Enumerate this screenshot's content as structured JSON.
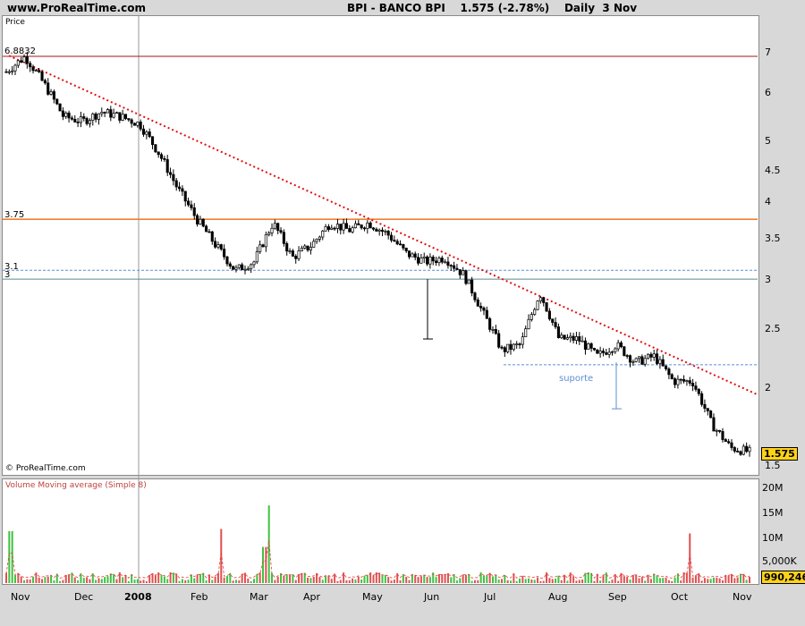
{
  "header": {
    "site": "www.ProRealTime.com",
    "title": "BPI - BANCO BPI    1.575 (-2.78%)    Daily  3 Nov"
  },
  "price_panel": {
    "label": "Price",
    "watermark": "© ProRealTime.com",
    "last_price": "1.575"
  },
  "volume_panel": {
    "label": "Volume Moving average (Simple 8)",
    "last_volume": "990,246"
  },
  "chart_data": [
    {
      "type": "candlestick",
      "title": "BPI - BANCO BPI",
      "yscale": "log",
      "ylim": [
        1.45,
        7.6
      ],
      "y_ticks": [
        "7",
        "6",
        "5",
        "4.5",
        "4",
        "3.5",
        "3",
        "2.5",
        "2",
        "1.5"
      ],
      "x_ticks": [
        "Nov",
        "Dec",
        "2008",
        "Feb",
        "Mar",
        "Apr",
        "May",
        "Jun",
        "Jul",
        "Aug",
        "Sep",
        "Oct",
        "Nov"
      ],
      "vertical_marker": "2008",
      "grid": false,
      "horizontal_lines": [
        {
          "label": "6.8832",
          "value": 6.8832,
          "color": "#a01818",
          "style": "solid"
        },
        {
          "label": "3.75",
          "value": 3.75,
          "color": "#f08030",
          "style": "solid"
        },
        {
          "label": "3.1",
          "value": 3.1,
          "color": "#5b8fd6",
          "style": "dashed"
        },
        {
          "label": "3",
          "value": 3.0,
          "color": "#5a8a8a",
          "style": "solid"
        }
      ],
      "trendline": {
        "from": [
          "Nov",
          6.9
        ],
        "to": [
          "Nov",
          1.95
        ],
        "color": "#e01010",
        "style": "dotted"
      },
      "support": {
        "label": "suporte",
        "value": 2.18,
        "color": "#5b8fd6",
        "style": "dashed"
      },
      "close_path": [
        [
          "Nov",
          6.5
        ],
        [
          "Nov",
          6.88
        ],
        [
          "Nov",
          6.2
        ],
        [
          "Dec",
          5.5
        ],
        [
          "Dec",
          5.4
        ],
        [
          "Dec",
          5.6
        ],
        [
          "2008",
          5.5
        ],
        [
          "2008",
          5.35
        ],
        [
          "2008",
          4.8
        ],
        [
          "Feb",
          4.2
        ],
        [
          "Feb",
          3.75
        ],
        [
          "Feb",
          3.4
        ],
        [
          "Feb",
          3.1
        ],
        [
          "Mar",
          3.2
        ],
        [
          "Mar",
          3.7
        ],
        [
          "Mar",
          3.25
        ],
        [
          "Apr",
          3.4
        ],
        [
          "Apr",
          3.7
        ],
        [
          "Apr",
          3.6
        ],
        [
          "May",
          3.7
        ],
        [
          "May",
          3.55
        ],
        [
          "May",
          3.3
        ],
        [
          "Jun",
          3.2
        ],
        [
          "Jun",
          3.25
        ],
        [
          "Jun",
          3.05
        ],
        [
          "Jul",
          2.65
        ],
        [
          "Jul",
          2.3
        ],
        [
          "Jul",
          2.35
        ],
        [
          "Aug",
          2.85
        ],
        [
          "Aug",
          2.4
        ],
        [
          "Aug",
          2.4
        ],
        [
          "Sep",
          2.25
        ],
        [
          "Sep",
          2.35
        ],
        [
          "Sep",
          2.2
        ],
        [
          "Oct",
          2.25
        ],
        [
          "Oct",
          2.05
        ],
        [
          "Oct",
          2.05
        ],
        [
          "Oct",
          1.75
        ],
        [
          "Nov",
          1.6
        ],
        [
          "Nov",
          1.575
        ]
      ],
      "last_value": 1.575
    },
    {
      "type": "bar",
      "title": "Volume Moving average (Simple 8)",
      "y_ticks": [
        "20M",
        "15M",
        "10M",
        "5,000K"
      ],
      "ylim": [
        0,
        21000000
      ],
      "spikes": [
        [
          "Nov",
          11500000
        ],
        [
          "Mar",
          12000000
        ],
        [
          "Mar",
          17200000
        ],
        [
          "Oct",
          11000000
        ]
      ],
      "last_value": 990246
    }
  ],
  "colors": {
    "background": "#d8d8d8",
    "panel": "#ffffff",
    "candle": "#000000",
    "volume_up": "#40c040",
    "volume_down": "#e05050",
    "moving_average": "#e04040",
    "badge": "#ffd21a"
  }
}
